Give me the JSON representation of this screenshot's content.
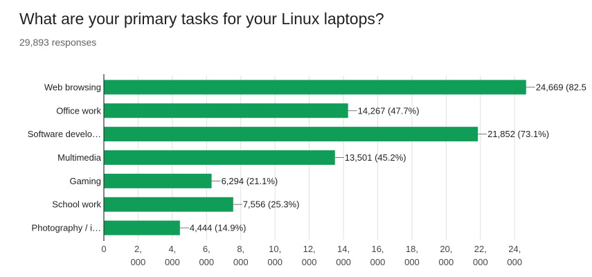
{
  "question": {
    "title": "What are your primary tasks for your Linux laptops?",
    "responses": "29,893 responses"
  },
  "colors": {
    "bar": "#0f9d58",
    "grid": "#e0e0e0",
    "axis": "#333333"
  },
  "chart_data": {
    "type": "bar",
    "orientation": "horizontal",
    "categories": [
      "Web browsing",
      "Office work",
      "Software develo…",
      "Multimedia",
      "Gaming",
      "School work",
      "Photography / i…"
    ],
    "values": [
      24669,
      14267,
      21852,
      13501,
      6294,
      7556,
      4444
    ],
    "value_labels": [
      "24,669 (82.5",
      "14,267 (47.7%)",
      "21,852 (73.1%)",
      "13,501 (45.2%)",
      "6,294 (21.1%)",
      "7,556 (25.3%)",
      "4,444 (14.9%)"
    ],
    "xlim": [
      0,
      25000
    ],
    "xticks": [
      0,
      2000,
      4000,
      6000,
      8000,
      10000,
      12000,
      14000,
      16000,
      18000,
      20000,
      22000,
      24000
    ],
    "xtick_labels": [
      [
        "0"
      ],
      [
        "2,",
        "000"
      ],
      [
        "4,",
        "000"
      ],
      [
        "6,",
        "000"
      ],
      [
        "8,",
        "000"
      ],
      [
        "10,",
        "000"
      ],
      [
        "12,",
        "000"
      ],
      [
        "14,",
        "000"
      ],
      [
        "16,",
        "000"
      ],
      [
        "18,",
        "000"
      ],
      [
        "20,",
        "000"
      ],
      [
        "22,",
        "000"
      ],
      [
        "24,",
        "000"
      ]
    ],
    "grid": true,
    "legend": "none"
  }
}
